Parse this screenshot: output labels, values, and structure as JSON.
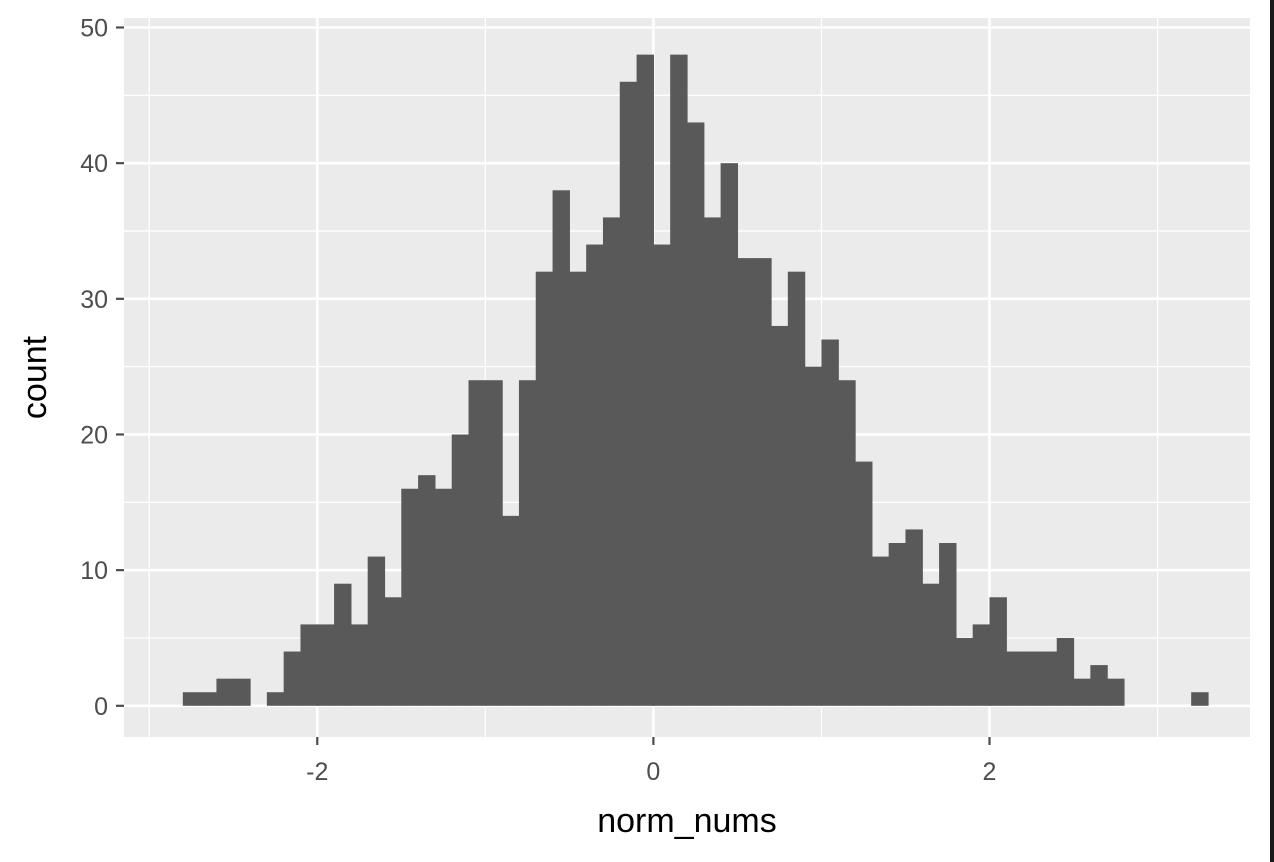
{
  "chart_data": {
    "type": "bar",
    "title": "",
    "xlabel": "norm_nums",
    "ylabel": "count",
    "xlim": [
      -3.15,
      3.55
    ],
    "ylim": [
      -2.3,
      50.7
    ],
    "bin_start": -2.8,
    "bin_width": 0.1,
    "values": [
      1,
      1,
      2,
      2,
      0,
      1,
      4,
      6,
      6,
      9,
      6,
      11,
      8,
      16,
      17,
      16,
      20,
      24,
      24,
      14,
      24,
      32,
      38,
      32,
      34,
      36,
      46,
      48,
      34,
      48,
      43,
      36,
      40,
      33,
      33,
      28,
      32,
      25,
      27,
      24,
      18,
      11,
      12,
      13,
      9,
      12,
      5,
      6,
      8,
      4,
      4,
      4,
      5,
      2,
      3,
      2,
      0,
      0,
      0,
      0,
      1
    ],
    "x_ticks": [
      -2,
      0,
      2
    ],
    "x_tick_labels": [
      "-2",
      "0",
      "2"
    ],
    "y_ticks": [
      0,
      10,
      20,
      30,
      40,
      50
    ],
    "y_tick_labels": [
      "0",
      "10",
      "20",
      "30",
      "40",
      "50"
    ],
    "grid": true,
    "legend": "none",
    "colors": {
      "panel": "#ebebeb",
      "grid": "#ffffff",
      "bar": "#595959",
      "ticks": "#4d4d4d"
    }
  }
}
